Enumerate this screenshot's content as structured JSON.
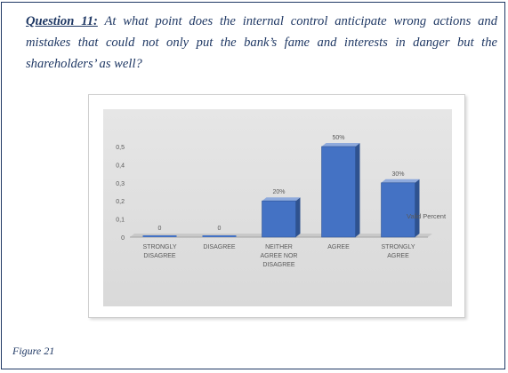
{
  "question": {
    "label": "Question 11:",
    "text": " At what point does the internal control anticipate wrong actions and mistakes that could not only put the bank’s fame and interests in danger but the shareholders’ as well?"
  },
  "caption": "Figure 21",
  "colors": {
    "border": "#1f3864",
    "bar_front": "#4472c4",
    "bar_side": "#2f528f",
    "bar_top": "#8faadc",
    "text": "#595959"
  },
  "chart_data": {
    "type": "bar",
    "categories": [
      [
        "STRONGLY",
        "DISAGREE"
      ],
      [
        "DISAGREE"
      ],
      [
        "NEITHER",
        "AGREE NOR",
        "DISAGREE"
      ],
      [
        "AGREE"
      ],
      [
        "STRONGLY",
        "AGREE"
      ]
    ],
    "series": [
      {
        "name": "Valid Percent",
        "values": [
          0,
          0,
          0.2,
          0.5,
          0.3
        ],
        "data_labels": [
          "0",
          "0",
          "20%",
          "50%",
          "30%"
        ]
      }
    ],
    "yticks": [
      "0",
      "0,1",
      "0,2",
      "0,3",
      "0,4",
      "0,5"
    ],
    "ylim": [
      0,
      0.5
    ],
    "grid": false,
    "legend_position": "right",
    "style": "3d-column"
  }
}
